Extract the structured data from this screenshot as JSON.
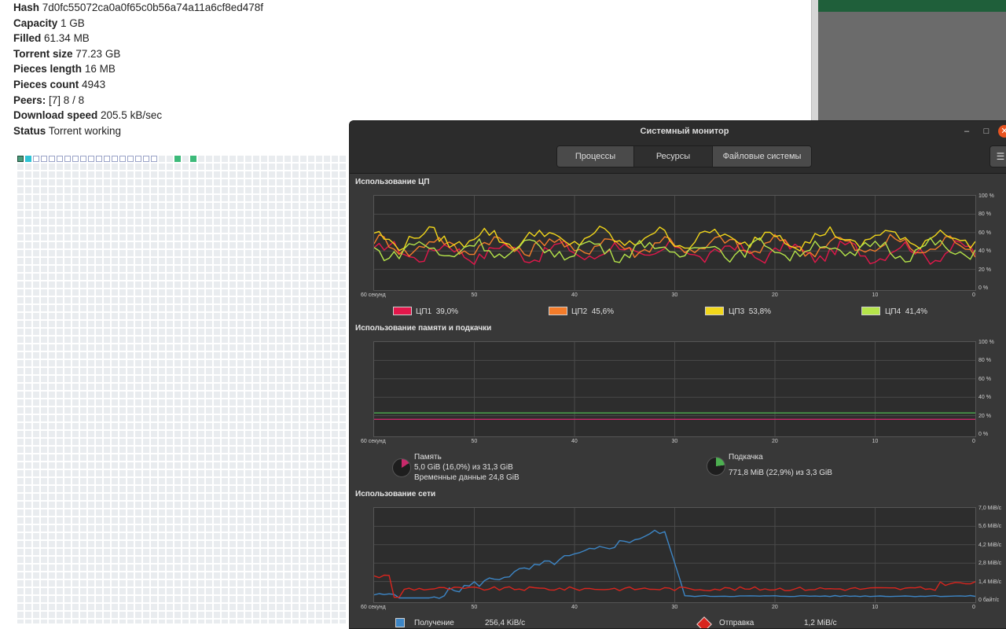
{
  "torrent": {
    "rows": [
      {
        "key": "Hash",
        "value": "7d0fc55072ca0a0f65c0b56a74a11a6cf8ed478f"
      },
      {
        "key": "Capacity",
        "value": "1 GB"
      },
      {
        "key": "Filled",
        "value": "61.34 MB"
      },
      {
        "key": "Torrent size",
        "value": "77.23 GB"
      },
      {
        "key": "Pieces length",
        "value": "16 MB"
      },
      {
        "key": "Pieces count",
        "value": "4943"
      },
      {
        "key": "Peers:",
        "value": "[7] 8 / 8"
      },
      {
        "key": "Download speed",
        "value": "205.5 kB/sec"
      },
      {
        "key": "Status",
        "value": "Torrent working"
      }
    ],
    "pieces_colors": {
      "empty": "#e9ecef",
      "selected": "#9aa3c7",
      "complete": "#3dba7a",
      "active": "#2fc3d4"
    }
  },
  "monitor": {
    "title": "Системный монитор",
    "window_buttons": {
      "minimize": "–",
      "maximize": "□",
      "close": "✕"
    },
    "tabs": [
      {
        "label": "Процессы",
        "active": false
      },
      {
        "label": "Ресурсы",
        "active": true
      },
      {
        "label": "Файловые системы",
        "active": false
      }
    ],
    "menu_icon": "☰",
    "cpu": {
      "title": "Использование ЦП",
      "y_ticks": [
        "100 %",
        "80 %",
        "60 %",
        "40 %",
        "20 %",
        "0 %"
      ],
      "x_ticks": [
        "60 секунд",
        "50",
        "40",
        "30",
        "20",
        "10",
        "0"
      ],
      "legend": [
        {
          "name": "ЦП1",
          "value": "39,0%",
          "color": "#e3174b"
        },
        {
          "name": "ЦП2",
          "value": "45,6%",
          "color": "#f47c2a"
        },
        {
          "name": "ЦП3",
          "value": "53,8%",
          "color": "#f2d71a"
        },
        {
          "name": "ЦП4",
          "value": "41,4%",
          "color": "#b5e44a"
        }
      ]
    },
    "memory": {
      "title": "Использование памяти и подкачки",
      "y_ticks": [
        "100 %",
        "80 %",
        "60 %",
        "40 %",
        "20 %",
        "0 %"
      ],
      "x_ticks": [
        "60 секунд",
        "50",
        "40",
        "30",
        "20",
        "10",
        "0"
      ],
      "ram_label": "Память",
      "ram_value": "5,0 GiB (16,0%) из 31,3 GiB",
      "ram_cache": "Временные данные 24,8 GiB",
      "ram_percent": 16.0,
      "ram_color": "#c8296b",
      "swap_label": "Подкачка",
      "swap_value": "771,8 MiB (22,9%) из 3,3 GiB",
      "swap_percent": 22.9,
      "swap_color": "#4caf50"
    },
    "network": {
      "title": "Использование сети",
      "y_ticks": [
        "7,0 MiB/с",
        "5,6 MiB/с",
        "4,2 MiB/с",
        "2,8 MiB/с",
        "1,4 MiB/с",
        "0 байт/с"
      ],
      "x_ticks": [
        "60 секунд",
        "50",
        "40",
        "30",
        "20",
        "10",
        "0"
      ],
      "recv_label": "Получение",
      "recv_value": "256,4 KiB/с",
      "recv_color": "#3d86c6",
      "send_label": "Отправка",
      "send_value": "1,2 MiB/с",
      "send_color": "#d9251e"
    }
  }
}
